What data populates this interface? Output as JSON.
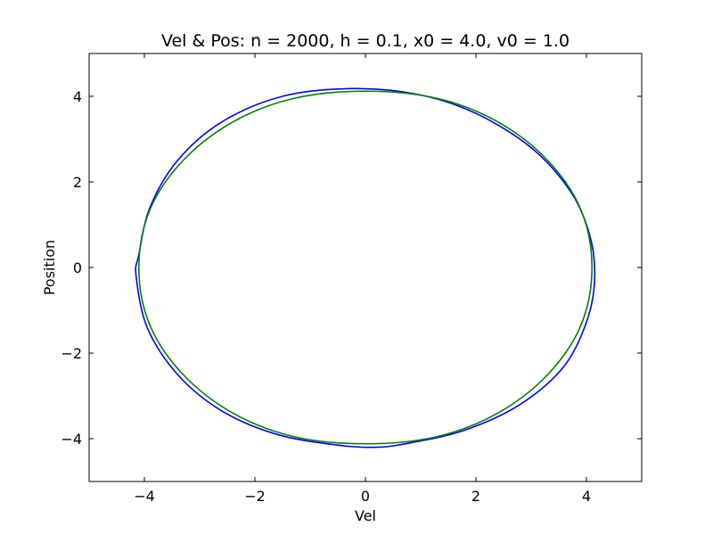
{
  "chart_data": {
    "type": "line",
    "title": "Vel & Pos: n = 2000,  h = 0.1,  x0 = 4.0,  v0 = 1.0",
    "xlabel": "Vel",
    "ylabel": "Position",
    "xlim": [
      -5,
      5
    ],
    "ylim": [
      -5,
      5
    ],
    "xticks": [
      -4,
      -2,
      0,
      2,
      4
    ],
    "yticks": [
      -4,
      -2,
      0,
      2,
      4
    ],
    "xtick_labels": [
      "−4",
      "−2",
      "0",
      "2",
      "4"
    ],
    "ytick_labels": [
      "−4",
      "−2",
      "0",
      "2",
      "4"
    ],
    "grid": false,
    "legend": "none",
    "series": [
      {
        "color": "#0000ff",
        "values": [
          [
            -0.2,
            4.18
          ],
          [
            1.0,
            4.03
          ],
          [
            2.0,
            3.6
          ],
          [
            3.0,
            2.8
          ],
          [
            3.7,
            1.8
          ],
          [
            4.05,
            0.8
          ],
          [
            4.15,
            -0.2
          ],
          [
            4.02,
            -1.2
          ],
          [
            3.6,
            -2.3
          ],
          [
            2.8,
            -3.2
          ],
          [
            1.8,
            -3.8
          ],
          [
            0.8,
            -4.1
          ],
          [
            0.2,
            -4.2
          ],
          [
            -0.5,
            -4.15
          ],
          [
            -1.6,
            -3.9
          ],
          [
            -2.6,
            -3.35
          ],
          [
            -3.4,
            -2.5
          ],
          [
            -3.95,
            -1.4
          ],
          [
            -4.15,
            -0.2
          ],
          [
            -4.1,
            0.3
          ],
          [
            -3.9,
            1.4
          ],
          [
            -3.4,
            2.5
          ],
          [
            -2.6,
            3.4
          ],
          [
            -1.5,
            4.0
          ],
          [
            -0.2,
            4.18
          ]
        ]
      },
      {
        "color": "#008000",
        "values": [
          [
            0.0,
            4.12
          ],
          [
            1.3,
            3.95
          ],
          [
            2.4,
            3.4
          ],
          [
            3.3,
            2.5
          ],
          [
            3.9,
            1.35
          ],
          [
            4.1,
            0.0
          ],
          [
            3.9,
            -1.35
          ],
          [
            3.3,
            -2.5
          ],
          [
            2.4,
            -3.4
          ],
          [
            1.3,
            -3.95
          ],
          [
            0.0,
            -4.12
          ],
          [
            -1.3,
            -3.95
          ],
          [
            -2.4,
            -3.4
          ],
          [
            -3.3,
            -2.5
          ],
          [
            -3.9,
            -1.35
          ],
          [
            -4.1,
            0.0
          ],
          [
            -3.9,
            1.35
          ],
          [
            -3.3,
            2.5
          ],
          [
            -2.4,
            3.4
          ],
          [
            -1.3,
            3.95
          ],
          [
            0.0,
            4.12
          ]
        ]
      }
    ]
  }
}
